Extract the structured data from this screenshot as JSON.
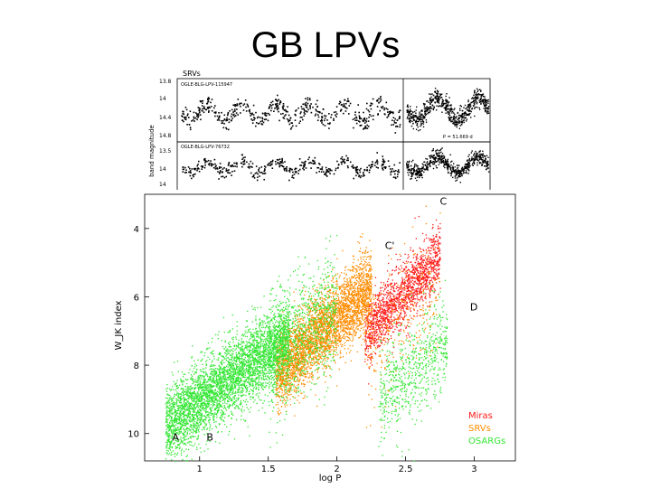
{
  "slide": {
    "title": "GB LPVs"
  },
  "lightcurves": {
    "panel_label": "SRVs",
    "ylabel": "band magnitude",
    "top": {
      "star_id": "OGLE-BLG-LPV-115947",
      "yticks": [
        "13.8",
        "14",
        "14.4",
        "14.8"
      ],
      "period_label": "P = 51.669 d"
    },
    "bottom": {
      "star_id": "OGLE-BLG-LPV-76732",
      "yticks": [
        "13.5",
        "14",
        "14"
      ]
    }
  },
  "chart_data": {
    "type": "scatter",
    "title": "",
    "xlabel": "log P",
    "ylabel": "W_JK index",
    "xlim": [
      0.6,
      3.3
    ],
    "ylim": [
      10.8,
      3.0
    ],
    "y_inverted": true,
    "xticks": [
      {
        "value": 1,
        "label": "1"
      },
      {
        "value": 1.5,
        "label": "1.5"
      },
      {
        "value": 2,
        "label": "2"
      },
      {
        "value": 2.5,
        "label": "2.5"
      },
      {
        "value": 3,
        "label": "3"
      }
    ],
    "yticks": [
      {
        "value": 4,
        "label": "4"
      },
      {
        "value": 6,
        "label": "6"
      },
      {
        "value": 8,
        "label": "8"
      },
      {
        "value": 10,
        "label": "10"
      }
    ],
    "series": [
      {
        "name": "Miras",
        "color": "#ff1a1a",
        "clusters": [
          {
            "x_range": [
              2.2,
              2.75
            ],
            "y_at_x0": 7.1,
            "slope": -4.2,
            "spread": 0.45,
            "n": 1600
          }
        ]
      },
      {
        "name": "SRVs",
        "color": "#ff8c00",
        "clusters": [
          {
            "x_range": [
              1.55,
              2.25
            ],
            "y_at_x0": 8.2,
            "slope": -3.6,
            "spread": 0.55,
            "n": 3500
          },
          {
            "x_range": [
              2.2,
              2.75
            ],
            "y_at_x0": 7.6,
            "slope": -3.8,
            "spread": 0.9,
            "n": 300
          }
        ]
      },
      {
        "name": "OSARGs",
        "color": "#33e633",
        "clusters": [
          {
            "x_range": [
              0.75,
              1.65
            ],
            "y_at_x0": 9.8,
            "slope": -3.0,
            "spread": 0.55,
            "n": 4200
          },
          {
            "x_range": [
              1.5,
              2.0
            ],
            "y_at_x0": 7.9,
            "slope": -3.2,
            "spread": 0.9,
            "n": 900
          },
          {
            "x_range": [
              2.3,
              2.8
            ],
            "y_at_x0": 9.0,
            "slope": -3.5,
            "spread": 0.7,
            "n": 700
          }
        ]
      }
    ],
    "sequence_labels": [
      {
        "text": "A",
        "x": 0.8,
        "y": 10.2
      },
      {
        "text": "B",
        "x": 1.05,
        "y": 10.2
      },
      {
        "text": "C",
        "x": 2.75,
        "y": 3.3
      },
      {
        "text": "C'",
        "x": 2.35,
        "y": 4.6
      },
      {
        "text": "D",
        "x": 2.97,
        "y": 6.4
      }
    ],
    "legend": {
      "placement": "bottom-right",
      "entries": [
        "Miras",
        "SRVs",
        "OSARGs"
      ]
    }
  }
}
